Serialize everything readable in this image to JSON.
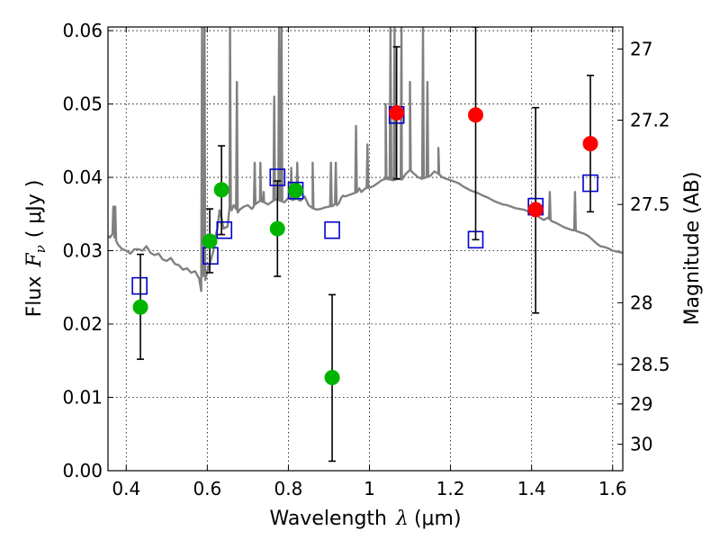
{
  "chart_data": {
    "type": "scatter",
    "xlabel": "Wavelength",
    "xlabel_symbol": "λ",
    "xlabel_unit": "(μm)",
    "ylabel": "Flux",
    "ylabel_symbol": "F",
    "ylabel_sub": "ν",
    "ylabel_unit": "( μJy )",
    "y2label": "Magnitude (AB)",
    "xlim": [
      0.355,
      1.625
    ],
    "ylim": [
      0.0,
      0.0605
    ],
    "grid": true,
    "x_ticks": [
      0.4,
      0.6,
      0.8,
      1.0,
      1.2,
      1.4,
      1.6
    ],
    "x_tick_labels": [
      "0.4",
      "0.6",
      "0.8",
      "1",
      "1.2",
      "1.4",
      "1.6"
    ],
    "y_ticks": [
      0.0,
      0.01,
      0.02,
      0.03,
      0.04,
      0.05,
      0.06
    ],
    "y_tick_labels": [
      "0.00",
      "0.01",
      "0.02",
      "0.03",
      "0.04",
      "0.05",
      "0.06"
    ],
    "y2_ticks": [
      {
        "label": "27",
        "flux": 0.0575
      },
      {
        "label": "27.2",
        "flux": 0.0478
      },
      {
        "label": "27.5",
        "flux": 0.0363
      },
      {
        "label": "28",
        "flux": 0.0229
      },
      {
        "label": "28.5",
        "flux": 0.0145
      },
      {
        "label": "29",
        "flux": 0.0091
      },
      {
        "label": "30",
        "flux": 0.0036
      }
    ],
    "series": [
      {
        "type": "spectrum",
        "color": "#808080",
        "points": [
          [
            0.355,
            0.032
          ],
          [
            0.36,
            0.0318
          ],
          [
            0.366,
            0.0323
          ],
          [
            0.368,
            0.036
          ],
          [
            0.371,
            0.0318
          ],
          [
            0.38,
            0.0308
          ],
          [
            0.39,
            0.0302
          ],
          [
            0.4,
            0.03
          ],
          [
            0.41,
            0.0296
          ],
          [
            0.42,
            0.0302
          ],
          [
            0.43,
            0.0302
          ],
          [
            0.44,
            0.03
          ],
          [
            0.45,
            0.0306
          ],
          [
            0.46,
            0.0297
          ],
          [
            0.47,
            0.0294
          ],
          [
            0.48,
            0.0296
          ],
          [
            0.49,
            0.0288
          ],
          [
            0.5,
            0.0286
          ],
          [
            0.51,
            0.029
          ],
          [
            0.52,
            0.0282
          ],
          [
            0.53,
            0.028
          ],
          [
            0.54,
            0.0274
          ],
          [
            0.55,
            0.0276
          ],
          [
            0.56,
            0.027
          ],
          [
            0.57,
            0.0272
          ],
          [
            0.58,
            0.0262
          ],
          [
            0.585,
            0.0245
          ],
          [
            0.59,
            0.027
          ],
          [
            0.595,
            0.026
          ],
          [
            0.6,
            0.0272
          ],
          [
            0.605,
            0.028
          ],
          [
            0.61,
            0.029
          ],
          [
            0.615,
            0.03
          ],
          [
            0.62,
            0.032
          ],
          [
            0.625,
            0.033
          ],
          [
            0.63,
            0.0355
          ],
          [
            0.635,
            0.0345
          ],
          [
            0.64,
            0.033
          ],
          [
            0.65,
            0.0333
          ],
          [
            0.655,
            0.036
          ],
          [
            0.66,
            0.0355
          ],
          [
            0.665,
            0.0362
          ],
          [
            0.67,
            0.0358
          ],
          [
            0.675,
            0.0352
          ],
          [
            0.68,
            0.0356
          ],
          [
            0.69,
            0.036
          ],
          [
            0.7,
            0.0362
          ],
          [
            0.71,
            0.0357
          ],
          [
            0.72,
            0.0364
          ],
          [
            0.73,
            0.0368
          ],
          [
            0.74,
            0.0366
          ],
          [
            0.75,
            0.0363
          ],
          [
            0.76,
            0.0367
          ],
          [
            0.77,
            0.037
          ],
          [
            0.78,
            0.0368
          ],
          [
            0.79,
            0.0366
          ],
          [
            0.8,
            0.0372
          ],
          [
            0.81,
            0.0369
          ],
          [
            0.82,
            0.0371
          ],
          [
            0.83,
            0.0368
          ],
          [
            0.84,
            0.0374
          ],
          [
            0.85,
            0.0362
          ],
          [
            0.86,
            0.0358
          ],
          [
            0.87,
            0.0356
          ],
          [
            0.88,
            0.0357
          ],
          [
            0.89,
            0.0359
          ],
          [
            0.9,
            0.036
          ],
          [
            0.91,
            0.0361
          ],
          [
            0.915,
            0.0364
          ],
          [
            0.92,
            0.0362
          ],
          [
            0.925,
            0.0365
          ],
          [
            0.93,
            0.0372
          ],
          [
            0.935,
            0.0375
          ],
          [
            0.94,
            0.0374
          ],
          [
            0.95,
            0.0376
          ],
          [
            0.96,
            0.0378
          ],
          [
            0.97,
            0.038
          ],
          [
            0.975,
            0.0385
          ],
          [
            0.98,
            0.038
          ],
          [
            0.99,
            0.0385
          ],
          [
            1.0,
            0.0386
          ],
          [
            1.01,
            0.0388
          ],
          [
            1.02,
            0.0392
          ],
          [
            1.03,
            0.0396
          ],
          [
            1.04,
            0.0398
          ],
          [
            1.05,
            0.0397
          ],
          [
            1.06,
            0.0396
          ],
          [
            1.07,
            0.0398
          ],
          [
            1.08,
            0.0397
          ],
          [
            1.09,
            0.0405
          ],
          [
            1.1,
            0.041
          ],
          [
            1.11,
            0.0405
          ],
          [
            1.12,
            0.04
          ],
          [
            1.13,
            0.0398
          ],
          [
            1.14,
            0.04
          ],
          [
            1.15,
            0.0402
          ],
          [
            1.16,
            0.0408
          ],
          [
            1.17,
            0.0405
          ],
          [
            1.18,
            0.04
          ],
          [
            1.19,
            0.0398
          ],
          [
            1.2,
            0.0396
          ],
          [
            1.21,
            0.0394
          ],
          [
            1.22,
            0.0392
          ],
          [
            1.23,
            0.0388
          ],
          [
            1.24,
            0.0385
          ],
          [
            1.25,
            0.0382
          ],
          [
            1.26,
            0.038
          ],
          [
            1.27,
            0.0378
          ],
          [
            1.28,
            0.0375
          ],
          [
            1.29,
            0.0373
          ],
          [
            1.3,
            0.037
          ],
          [
            1.31,
            0.0367
          ],
          [
            1.32,
            0.0365
          ],
          [
            1.33,
            0.0363
          ],
          [
            1.34,
            0.0362
          ],
          [
            1.35,
            0.036
          ],
          [
            1.36,
            0.0358
          ],
          [
            1.37,
            0.0357
          ],
          [
            1.38,
            0.0356
          ],
          [
            1.39,
            0.0354
          ],
          [
            1.4,
            0.0352
          ],
          [
            1.41,
            0.035
          ],
          [
            1.42,
            0.0345
          ],
          [
            1.43,
            0.0342
          ],
          [
            1.44,
            0.0345
          ],
          [
            1.45,
            0.034
          ],
          [
            1.46,
            0.0338
          ],
          [
            1.47,
            0.0335
          ],
          [
            1.48,
            0.0332
          ],
          [
            1.49,
            0.033
          ],
          [
            1.5,
            0.0328
          ],
          [
            1.51,
            0.0327
          ],
          [
            1.52,
            0.0325
          ],
          [
            1.53,
            0.0323
          ],
          [
            1.54,
            0.032
          ],
          [
            1.55,
            0.0315
          ],
          [
            1.56,
            0.031
          ],
          [
            1.57,
            0.0306
          ],
          [
            1.58,
            0.0305
          ],
          [
            1.59,
            0.0303
          ],
          [
            1.6,
            0.03
          ],
          [
            1.61,
            0.0299
          ],
          [
            1.625,
            0.0297
          ]
        ],
        "emission_lines": [
          {
            "x": 0.373,
            "y": 0.036
          },
          {
            "x": 0.587,
            "y": 0.0605
          },
          {
            "x": 0.593,
            "y": 0.0605
          },
          {
            "x": 0.656,
            "y": 0.0605
          },
          {
            "x": 0.673,
            "y": 0.053
          },
          {
            "x": 0.717,
            "y": 0.042
          },
          {
            "x": 0.731,
            "y": 0.042
          },
          {
            "x": 0.739,
            "y": 0.038
          },
          {
            "x": 0.765,
            "y": 0.051
          },
          {
            "x": 0.777,
            "y": 0.0605
          },
          {
            "x": 0.783,
            "y": 0.0605
          },
          {
            "x": 0.807,
            "y": 0.0413
          },
          {
            "x": 0.822,
            "y": 0.042
          },
          {
            "x": 0.86,
            "y": 0.042
          },
          {
            "x": 0.905,
            "y": 0.042
          },
          {
            "x": 0.917,
            "y": 0.042
          },
          {
            "x": 0.967,
            "y": 0.047
          },
          {
            "x": 0.995,
            "y": 0.0445
          },
          {
            "x": 1.04,
            "y": 0.05
          },
          {
            "x": 1.052,
            "y": 0.0605
          },
          {
            "x": 1.062,
            "y": 0.0605
          },
          {
            "x": 1.079,
            "y": 0.0605
          },
          {
            "x": 1.1,
            "y": 0.053
          },
          {
            "x": 1.132,
            "y": 0.0605
          },
          {
            "x": 1.143,
            "y": 0.053
          },
          {
            "x": 1.17,
            "y": 0.044
          },
          {
            "x": 1.445,
            "y": 0.038
          },
          {
            "x": 1.507,
            "y": 0.038
          }
        ]
      },
      {
        "type": "model_boxes",
        "color": "#0000cc",
        "points": [
          [
            0.433,
            0.0252
          ],
          [
            0.608,
            0.0293
          ],
          [
            0.642,
            0.0328
          ],
          [
            0.773,
            0.04
          ],
          [
            0.818,
            0.0382
          ],
          [
            0.908,
            0.0328
          ],
          [
            1.067,
            0.0485
          ],
          [
            1.262,
            0.0315
          ],
          [
            1.41,
            0.036
          ],
          [
            1.545,
            0.0392
          ]
        ]
      },
      {
        "type": "observed",
        "color": "#00b400",
        "points": [
          {
            "x": 0.435,
            "y": 0.0223,
            "lo": 0.0152,
            "hi": 0.0295
          },
          {
            "x": 0.606,
            "y": 0.0313,
            "lo": 0.027,
            "hi": 0.0357
          },
          {
            "x": 0.635,
            "y": 0.0383,
            "lo": 0.0322,
            "hi": 0.0443
          },
          {
            "x": 0.773,
            "y": 0.033,
            "lo": 0.0265,
            "hi": 0.0395
          },
          {
            "x": 0.818,
            "y": 0.0382,
            "lo": null,
            "hi": null
          },
          {
            "x": 0.908,
            "y": 0.0127,
            "lo": 0.0013,
            "hi": 0.024
          }
        ]
      },
      {
        "type": "observed",
        "color": "#ff0000",
        "points": [
          {
            "x": 1.067,
            "y": 0.0488,
            "lo": 0.0398,
            "hi": 0.0578
          },
          {
            "x": 1.262,
            "y": 0.0485,
            "lo": 0.0315,
            "hi": 0.0605
          },
          {
            "x": 1.41,
            "y": 0.0356,
            "lo": 0.0215,
            "hi": 0.0495
          },
          {
            "x": 1.545,
            "y": 0.0446,
            "lo": 0.0353,
            "hi": 0.0539
          }
        ]
      }
    ]
  }
}
